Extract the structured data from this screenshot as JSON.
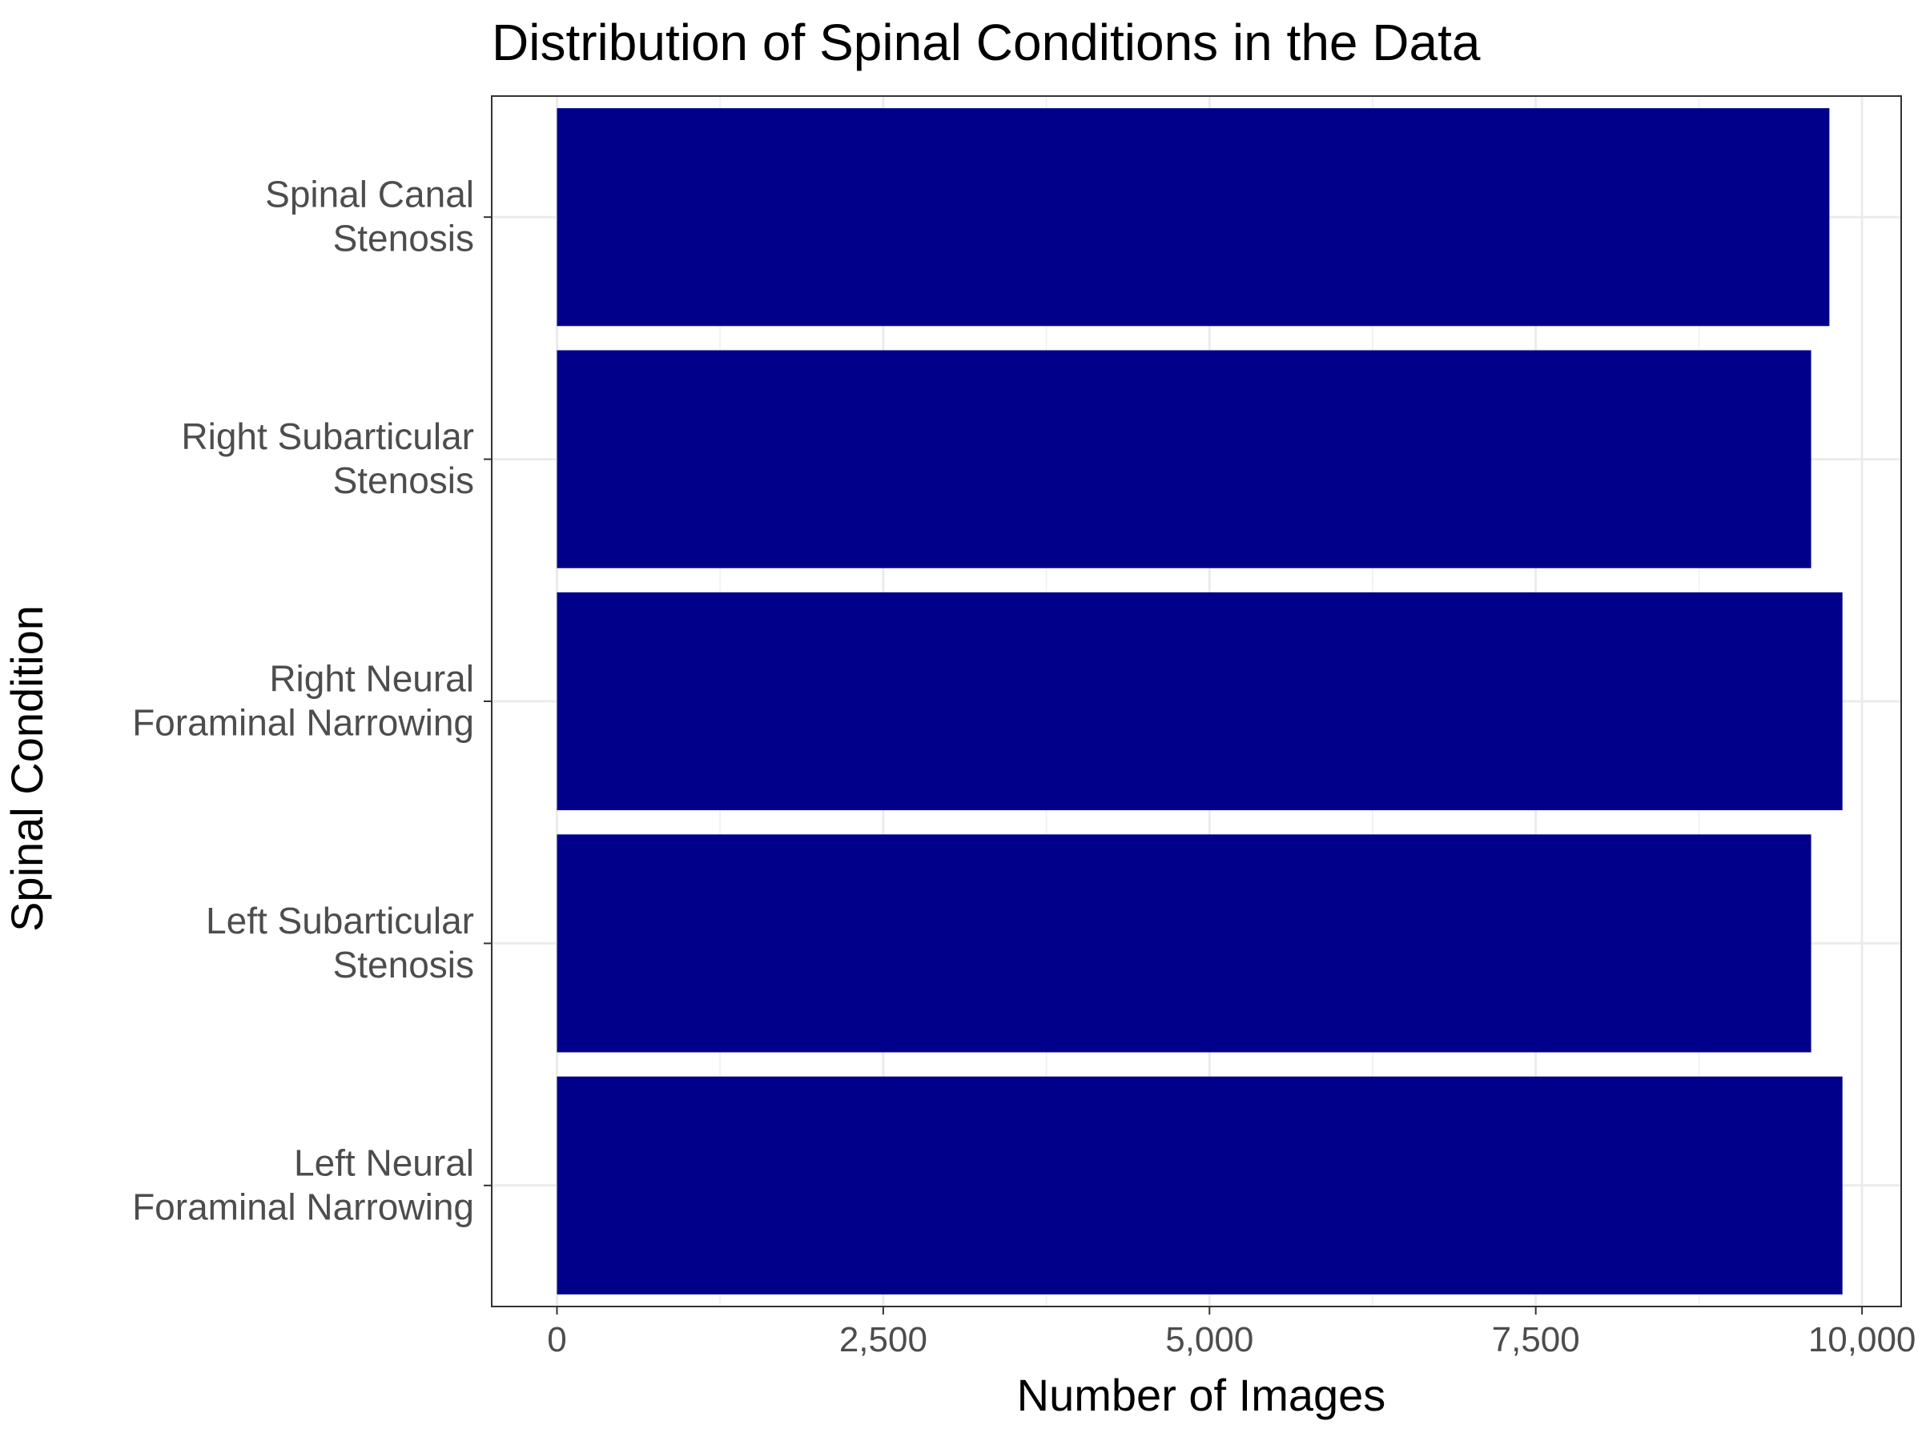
{
  "chart_data": {
    "type": "bar",
    "orientation": "horizontal",
    "title": "Distribution of Spinal Conditions in the Data",
    "xlabel": "Number of Images",
    "ylabel": "Spinal Condition",
    "categories": [
      "Spinal Canal Stenosis",
      "Right Subarticular Stenosis",
      "Right Neural Foraminal Narrowing",
      "Left Subarticular Stenosis",
      "Left Neural Foraminal Narrowing"
    ],
    "category_lines": [
      [
        "Spinal Canal",
        "Stenosis"
      ],
      [
        "Right Subarticular",
        "Stenosis"
      ],
      [
        "Right Neural",
        "Foraminal Narrowing"
      ],
      [
        "Left Subarticular",
        "Stenosis"
      ],
      [
        "Left Neural",
        "Foraminal Narrowing"
      ]
    ],
    "values": [
      9750,
      9610,
      9850,
      9610,
      9850
    ],
    "xlim": [
      -500,
      10300
    ],
    "xticks": [
      0,
      2500,
      5000,
      7500,
      10000
    ],
    "xtick_labels": [
      "0",
      "2,500",
      "5,000",
      "7,500",
      "10,000"
    ],
    "grid": true,
    "legend": "none",
    "bar_color": "#00008B"
  }
}
